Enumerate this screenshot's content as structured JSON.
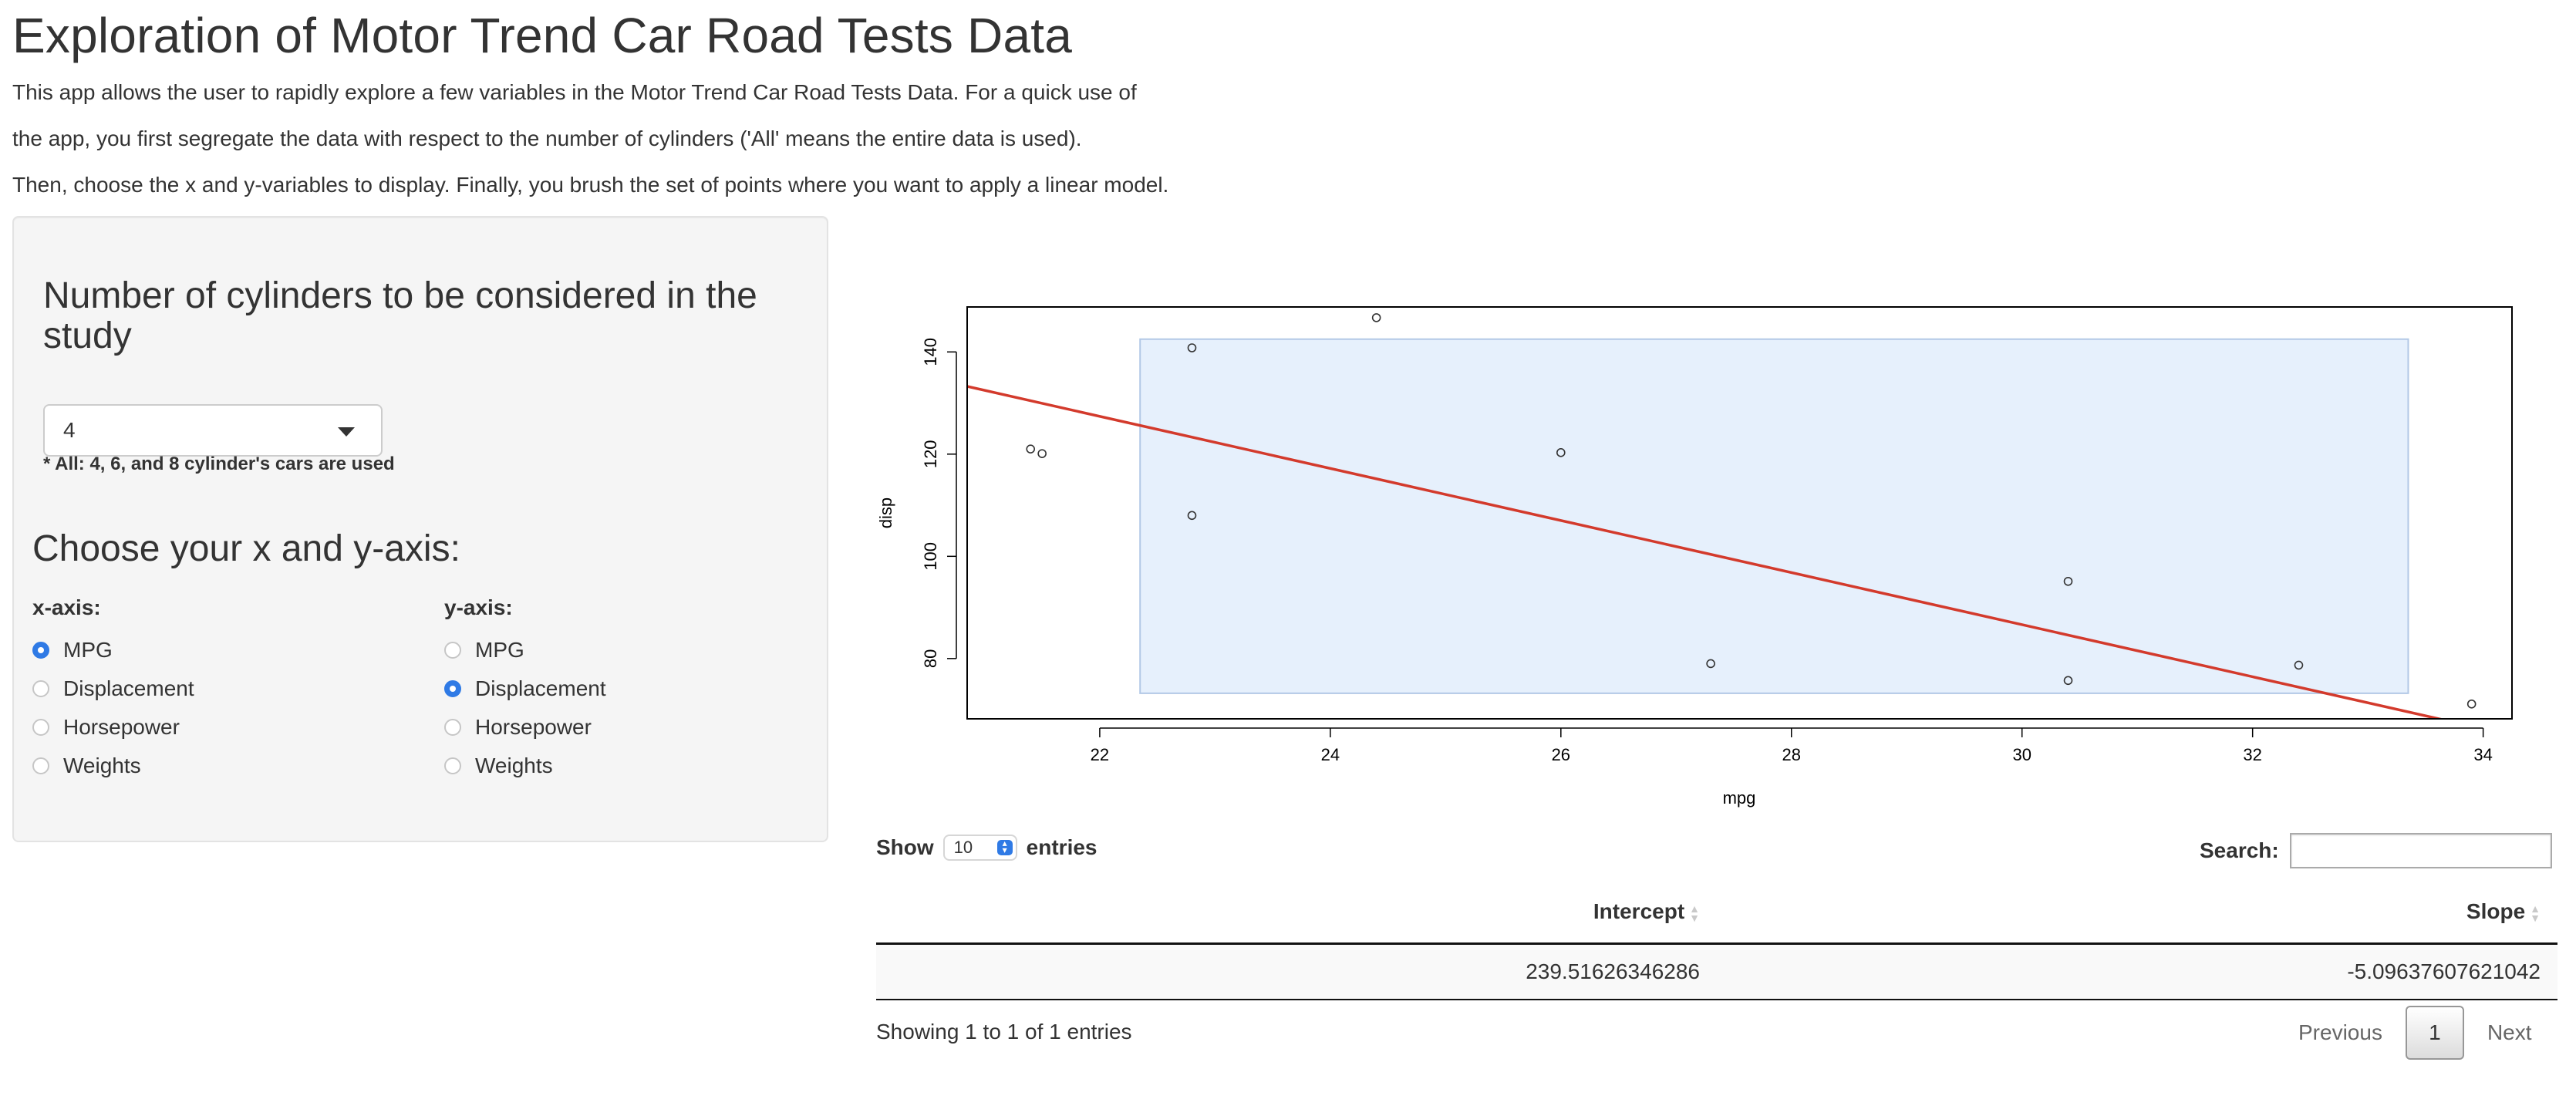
{
  "page": {
    "title": "Exploration of Motor Trend Car Road Tests Data",
    "intro": [
      "This app allows the user to rapidly explore a few variables in the Motor Trend Car Road Tests Data. For a quick use of",
      "the app, you first segregate the data with respect to the number of cylinders ('All' means the entire data is used).",
      "Then, choose the x and y-variables to display. Finally, you brush the set of points where you want to apply a linear model."
    ]
  },
  "sidebar": {
    "cylinders_title": "Number of cylinders to be considered in the study",
    "cylinders_selected": "4",
    "cylinders_note": "* All: 4, 6, and 8 cylinder's cars are used",
    "axis_title": "Choose your x and y-axis:",
    "x_axis": {
      "label": "x-axis:",
      "options": [
        "MPG",
        "Displacement",
        "Horsepower",
        "Weights"
      ],
      "selected": "MPG"
    },
    "y_axis": {
      "label": "y-axis:",
      "options": [
        "MPG",
        "Displacement",
        "Horsepower",
        "Weights"
      ],
      "selected": "Displacement"
    }
  },
  "chart_data": {
    "type": "scatter",
    "title": "",
    "xlabel": "mpg",
    "ylabel": "disp",
    "xlim": [
      20.85,
      34.25
    ],
    "ylim": [
      68.2,
      148.8
    ],
    "xticks": [
      22,
      24,
      26,
      28,
      30,
      32,
      34
    ],
    "yticks": [
      80,
      100,
      120,
      140
    ],
    "grid": false,
    "points": [
      {
        "x": 21.4,
        "y": 121.0
      },
      {
        "x": 21.5,
        "y": 120.1
      },
      {
        "x": 22.8,
        "y": 140.8
      },
      {
        "x": 22.8,
        "y": 108.0
      },
      {
        "x": 24.4,
        "y": 146.7
      },
      {
        "x": 26.0,
        "y": 120.3
      },
      {
        "x": 27.3,
        "y": 79.0
      },
      {
        "x": 30.4,
        "y": 95.1
      },
      {
        "x": 30.4,
        "y": 75.7
      },
      {
        "x": 32.4,
        "y": 78.7
      },
      {
        "x": 33.9,
        "y": 71.1
      }
    ],
    "brush": {
      "x": [
        22.35,
        33.35
      ],
      "y": [
        73.2,
        142.5
      ]
    },
    "fit_line": {
      "intercept": 239.51626346286,
      "slope": -5.09637607621042
    },
    "colors": {
      "points": "#333333",
      "brush_fill": "#e6f0fc",
      "brush_stroke": "#b2c8e6",
      "fit_line": "#d33a2c"
    }
  },
  "table": {
    "length_prefix": "Show",
    "length_value": "10",
    "length_suffix": "entries",
    "search_label": "Search:",
    "search_value": "",
    "columns": [
      "Intercept",
      "Slope"
    ],
    "rows": [
      [
        "239.51626346286",
        "-5.09637607621042"
      ]
    ],
    "info": "Showing 1 to 1 of 1 entries",
    "pagination": {
      "previous": "Previous",
      "current": "1",
      "next": "Next"
    }
  }
}
